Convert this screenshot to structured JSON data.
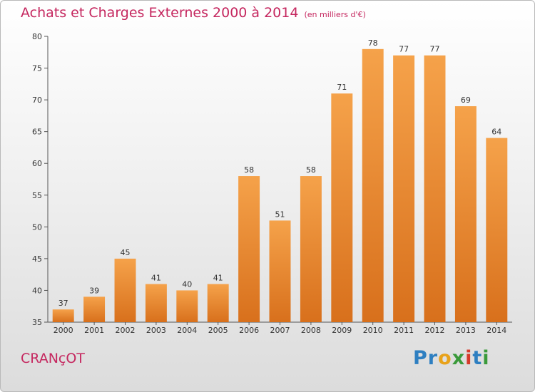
{
  "header": {
    "title": "Achats et Charges Externes 2000 à 2014",
    "unit": "(en milliers d'€)"
  },
  "footer": {
    "place": "CRANçOT",
    "logo": [
      {
        "ch": "P",
        "color": "#2e7fc1"
      },
      {
        "ch": "r",
        "color": "#2e7fc1"
      },
      {
        "ch": "o",
        "color": "#e8a21a"
      },
      {
        "ch": "x",
        "color": "#3a9a3a"
      },
      {
        "ch": "i",
        "color": "#d63a2a"
      },
      {
        "ch": "t",
        "color": "#2e7fc1"
      },
      {
        "ch": "i",
        "color": "#3a9a3a"
      }
    ]
  },
  "chart_data": {
    "type": "bar",
    "title": "Achats et Charges Externes 2000 à 2014",
    "subtitle": "(en milliers d'€)",
    "categories": [
      "2000",
      "2001",
      "2002",
      "2003",
      "2004",
      "2005",
      "2006",
      "2007",
      "2008",
      "2009",
      "2010",
      "2011",
      "2012",
      "2013",
      "2014"
    ],
    "values": [
      37,
      39,
      45,
      41,
      40,
      41,
      58,
      51,
      58,
      71,
      78,
      77,
      77,
      69,
      64
    ],
    "ylim": [
      35,
      80
    ],
    "yticks": [
      35,
      40,
      45,
      50,
      55,
      60,
      65,
      70,
      75,
      80
    ],
    "grid": false,
    "colors": {
      "bar_top": "#f5a24a",
      "bar_bottom": "#d8701c"
    }
  }
}
